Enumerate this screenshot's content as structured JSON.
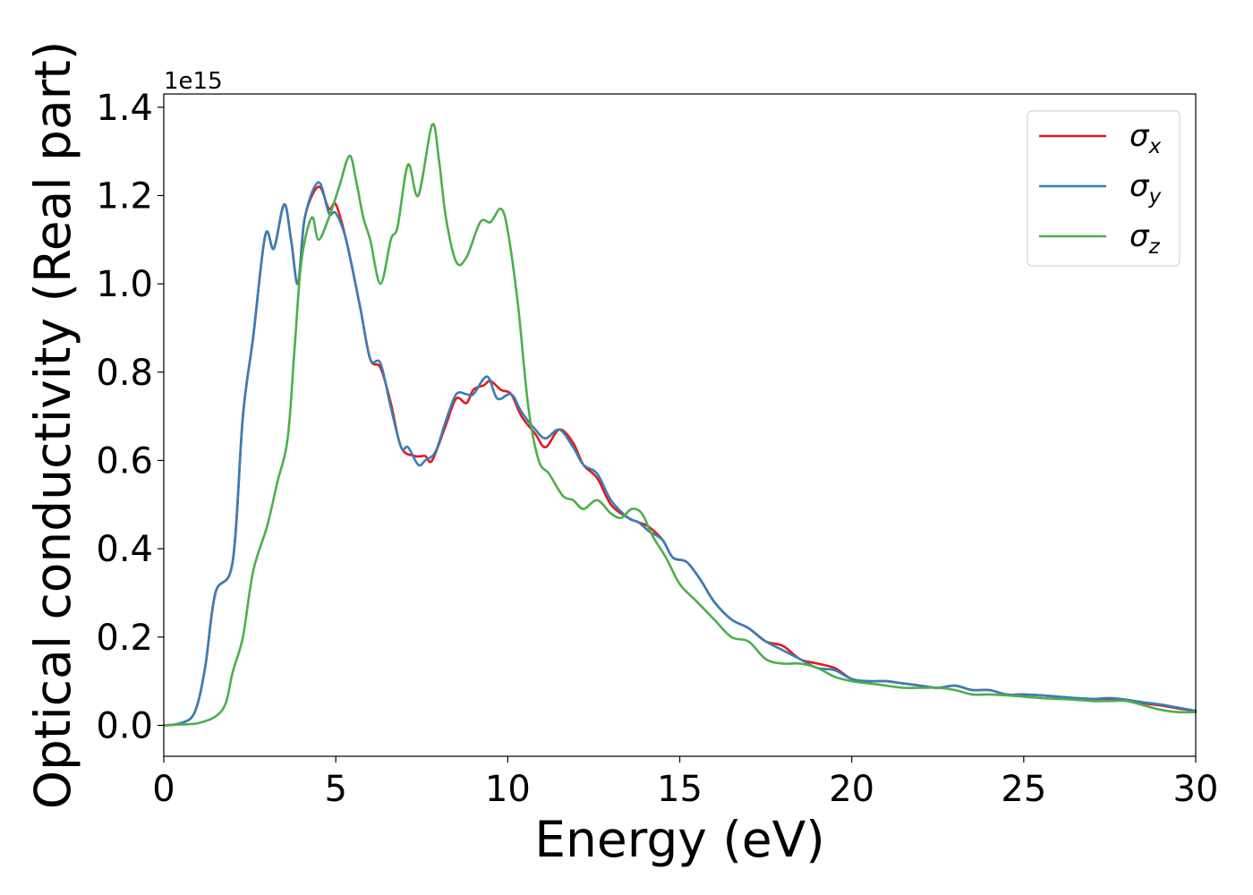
{
  "chart_data": {
    "type": "line",
    "title": "",
    "xlabel": "Energy (eV)",
    "ylabel": "Optical conductivity (Real part)",
    "y_offset_label": "1e15",
    "y_scale_factor": 1000000000000000.0,
    "xlim": [
      0,
      30
    ],
    "ylim": [
      -0.07,
      1.43
    ],
    "x_ticks": [
      0,
      5,
      10,
      15,
      20,
      25,
      30
    ],
    "x_tick_labels": [
      "0",
      "5",
      "10",
      "15",
      "20",
      "25",
      "30"
    ],
    "y_ticks": [
      0.0,
      0.2,
      0.4,
      0.6,
      0.8,
      1.0,
      1.2,
      1.4
    ],
    "y_tick_labels": [
      "0.0",
      "0.2",
      "0.4",
      "0.6",
      "0.8",
      "1.0",
      "1.2",
      "1.4"
    ],
    "grid": false,
    "legend_position": "top-right",
    "series": [
      {
        "name": "σx",
        "symbol": "σ",
        "subscript": "x",
        "color": "#e41a1c",
        "points": [
          [
            0,
            0
          ],
          [
            0.5,
            0.005
          ],
          [
            0.9,
            0.03
          ],
          [
            1.2,
            0.13
          ],
          [
            1.5,
            0.3
          ],
          [
            2.0,
            0.37
          ],
          [
            2.3,
            0.7
          ],
          [
            2.6,
            0.88
          ],
          [
            2.95,
            1.11
          ],
          [
            3.2,
            1.08
          ],
          [
            3.5,
            1.18
          ],
          [
            3.7,
            1.1
          ],
          [
            3.9,
            1.0
          ],
          [
            4.1,
            1.15
          ],
          [
            4.5,
            1.22
          ],
          [
            4.8,
            1.17
          ],
          [
            5.0,
            1.18
          ],
          [
            5.3,
            1.1
          ],
          [
            5.7,
            0.95
          ],
          [
            6.0,
            0.83
          ],
          [
            6.3,
            0.81
          ],
          [
            6.6,
            0.73
          ],
          [
            6.9,
            0.63
          ],
          [
            7.3,
            0.61
          ],
          [
            7.6,
            0.61
          ],
          [
            7.8,
            0.6
          ],
          [
            8.2,
            0.68
          ],
          [
            8.5,
            0.74
          ],
          [
            8.8,
            0.73
          ],
          [
            9.0,
            0.76
          ],
          [
            9.3,
            0.77
          ],
          [
            9.5,
            0.78
          ],
          [
            9.8,
            0.76
          ],
          [
            10.1,
            0.75
          ],
          [
            10.4,
            0.7
          ],
          [
            10.8,
            0.66
          ],
          [
            11.1,
            0.63
          ],
          [
            11.5,
            0.67
          ],
          [
            11.9,
            0.64
          ],
          [
            12.2,
            0.59
          ],
          [
            12.6,
            0.56
          ],
          [
            13.0,
            0.5
          ],
          [
            13.5,
            0.47
          ],
          [
            13.8,
            0.46
          ],
          [
            14.1,
            0.45
          ],
          [
            14.5,
            0.42
          ],
          [
            14.8,
            0.38
          ],
          [
            15.2,
            0.37
          ],
          [
            15.6,
            0.33
          ],
          [
            16.0,
            0.28
          ],
          [
            16.5,
            0.24
          ],
          [
            17.0,
            0.22
          ],
          [
            17.5,
            0.19
          ],
          [
            18.0,
            0.18
          ],
          [
            18.5,
            0.15
          ],
          [
            19.0,
            0.14
          ],
          [
            19.5,
            0.13
          ],
          [
            20.0,
            0.105
          ],
          [
            20.5,
            0.1
          ],
          [
            21.0,
            0.1
          ],
          [
            21.5,
            0.095
          ],
          [
            22.0,
            0.09
          ],
          [
            22.5,
            0.085
          ],
          [
            23.0,
            0.09
          ],
          [
            23.5,
            0.08
          ],
          [
            24.0,
            0.08
          ],
          [
            24.5,
            0.07
          ],
          [
            25.0,
            0.07
          ],
          [
            25.5,
            0.068
          ],
          [
            26.0,
            0.065
          ],
          [
            26.5,
            0.062
          ],
          [
            27.0,
            0.06
          ],
          [
            27.5,
            0.06
          ],
          [
            28.0,
            0.058
          ],
          [
            28.5,
            0.05
          ],
          [
            29.0,
            0.045
          ],
          [
            29.5,
            0.038
          ],
          [
            30.0,
            0.033
          ]
        ]
      },
      {
        "name": "σy",
        "symbol": "σ",
        "subscript": "y",
        "color": "#377eb8",
        "points": [
          [
            0,
            0
          ],
          [
            0.5,
            0.005
          ],
          [
            0.9,
            0.03
          ],
          [
            1.2,
            0.13
          ],
          [
            1.5,
            0.3
          ],
          [
            2.0,
            0.37
          ],
          [
            2.3,
            0.7
          ],
          [
            2.6,
            0.88
          ],
          [
            2.95,
            1.11
          ],
          [
            3.2,
            1.08
          ],
          [
            3.5,
            1.18
          ],
          [
            3.7,
            1.1
          ],
          [
            3.9,
            1.0
          ],
          [
            4.1,
            1.15
          ],
          [
            4.5,
            1.23
          ],
          [
            4.8,
            1.16
          ],
          [
            5.0,
            1.16
          ],
          [
            5.3,
            1.1
          ],
          [
            5.7,
            0.95
          ],
          [
            6.0,
            0.83
          ],
          [
            6.3,
            0.82
          ],
          [
            6.6,
            0.72
          ],
          [
            6.9,
            0.63
          ],
          [
            7.1,
            0.63
          ],
          [
            7.4,
            0.59
          ],
          [
            7.6,
            0.6
          ],
          [
            7.9,
            0.62
          ],
          [
            8.2,
            0.69
          ],
          [
            8.5,
            0.75
          ],
          [
            8.8,
            0.75
          ],
          [
            9.0,
            0.75
          ],
          [
            9.4,
            0.79
          ],
          [
            9.7,
            0.74
          ],
          [
            10.1,
            0.75
          ],
          [
            10.4,
            0.71
          ],
          [
            10.8,
            0.67
          ],
          [
            11.1,
            0.65
          ],
          [
            11.5,
            0.67
          ],
          [
            11.9,
            0.63
          ],
          [
            12.2,
            0.59
          ],
          [
            12.6,
            0.57
          ],
          [
            13.0,
            0.51
          ],
          [
            13.5,
            0.47
          ],
          [
            13.8,
            0.46
          ],
          [
            14.1,
            0.44
          ],
          [
            14.5,
            0.42
          ],
          [
            14.8,
            0.38
          ],
          [
            15.2,
            0.37
          ],
          [
            15.6,
            0.33
          ],
          [
            16.0,
            0.28
          ],
          [
            16.5,
            0.24
          ],
          [
            17.0,
            0.22
          ],
          [
            17.5,
            0.19
          ],
          [
            18.0,
            0.17
          ],
          [
            18.5,
            0.15
          ],
          [
            19.0,
            0.13
          ],
          [
            19.5,
            0.125
          ],
          [
            20.0,
            0.105
          ],
          [
            20.5,
            0.1
          ],
          [
            21.0,
            0.1
          ],
          [
            21.5,
            0.095
          ],
          [
            22.0,
            0.09
          ],
          [
            22.5,
            0.085
          ],
          [
            23.0,
            0.09
          ],
          [
            23.5,
            0.08
          ],
          [
            24.0,
            0.08
          ],
          [
            24.5,
            0.07
          ],
          [
            25.0,
            0.07
          ],
          [
            25.5,
            0.068
          ],
          [
            26.0,
            0.065
          ],
          [
            26.5,
            0.062
          ],
          [
            27.0,
            0.06
          ],
          [
            27.5,
            0.062
          ],
          [
            28.0,
            0.058
          ],
          [
            28.5,
            0.052
          ],
          [
            29.0,
            0.047
          ],
          [
            29.5,
            0.04
          ],
          [
            30.0,
            0.033
          ]
        ]
      },
      {
        "name": "σz",
        "symbol": "σ",
        "subscript": "z",
        "color": "#4daf4a",
        "points": [
          [
            0,
            0
          ],
          [
            0.5,
            0.002
          ],
          [
            1.0,
            0.005
          ],
          [
            1.5,
            0.02
          ],
          [
            1.8,
            0.05
          ],
          [
            2.0,
            0.12
          ],
          [
            2.3,
            0.2
          ],
          [
            2.6,
            0.35
          ],
          [
            3.0,
            0.45
          ],
          [
            3.3,
            0.55
          ],
          [
            3.6,
            0.65
          ],
          [
            3.8,
            0.85
          ],
          [
            4.0,
            1.05
          ],
          [
            4.3,
            1.15
          ],
          [
            4.5,
            1.1
          ],
          [
            4.8,
            1.15
          ],
          [
            5.1,
            1.22
          ],
          [
            5.4,
            1.29
          ],
          [
            5.6,
            1.23
          ],
          [
            5.8,
            1.15
          ],
          [
            6.0,
            1.1
          ],
          [
            6.3,
            1.0
          ],
          [
            6.6,
            1.1
          ],
          [
            6.8,
            1.13
          ],
          [
            7.1,
            1.27
          ],
          [
            7.4,
            1.2
          ],
          [
            7.8,
            1.36
          ],
          [
            8.0,
            1.28
          ],
          [
            8.2,
            1.15
          ],
          [
            8.5,
            1.05
          ],
          [
            8.8,
            1.06
          ],
          [
            9.2,
            1.14
          ],
          [
            9.5,
            1.14
          ],
          [
            9.8,
            1.17
          ],
          [
            10.0,
            1.12
          ],
          [
            10.3,
            0.95
          ],
          [
            10.6,
            0.72
          ],
          [
            10.9,
            0.6
          ],
          [
            11.2,
            0.57
          ],
          [
            11.6,
            0.52
          ],
          [
            11.9,
            0.51
          ],
          [
            12.2,
            0.49
          ],
          [
            12.6,
            0.51
          ],
          [
            13.0,
            0.48
          ],
          [
            13.3,
            0.47
          ],
          [
            13.6,
            0.49
          ],
          [
            13.9,
            0.48
          ],
          [
            14.2,
            0.43
          ],
          [
            14.6,
            0.38
          ],
          [
            15.0,
            0.32
          ],
          [
            15.5,
            0.28
          ],
          [
            16.0,
            0.24
          ],
          [
            16.5,
            0.2
          ],
          [
            17.0,
            0.19
          ],
          [
            17.5,
            0.15
          ],
          [
            18.0,
            0.14
          ],
          [
            18.5,
            0.14
          ],
          [
            19.0,
            0.13
          ],
          [
            19.5,
            0.11
          ],
          [
            20.0,
            0.1
          ],
          [
            20.5,
            0.095
          ],
          [
            21.0,
            0.09
          ],
          [
            21.5,
            0.085
          ],
          [
            22.0,
            0.085
          ],
          [
            22.5,
            0.085
          ],
          [
            23.0,
            0.08
          ],
          [
            23.5,
            0.07
          ],
          [
            24.0,
            0.07
          ],
          [
            24.5,
            0.068
          ],
          [
            25.0,
            0.065
          ],
          [
            25.5,
            0.062
          ],
          [
            26.0,
            0.06
          ],
          [
            26.5,
            0.058
          ],
          [
            27.0,
            0.055
          ],
          [
            27.5,
            0.055
          ],
          [
            28.0,
            0.055
          ],
          [
            28.5,
            0.045
          ],
          [
            29.0,
            0.035
          ],
          [
            29.5,
            0.03
          ],
          [
            30.0,
            0.03
          ]
        ]
      }
    ]
  }
}
